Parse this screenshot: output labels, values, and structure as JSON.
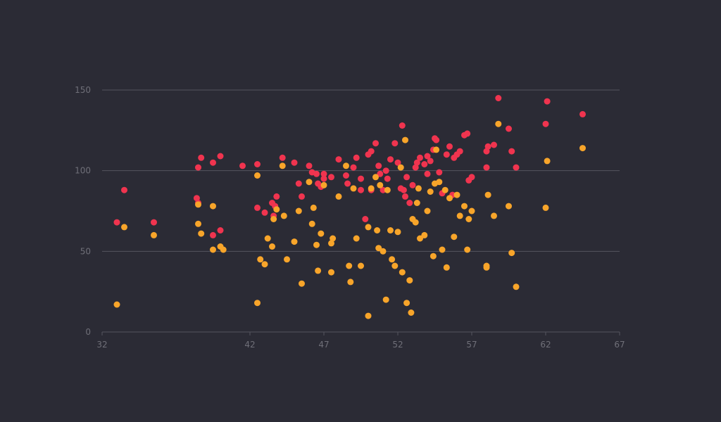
{
  "chart_data": {
    "type": "scatter",
    "xlim": [
      32,
      67
    ],
    "ylim": [
      0,
      160
    ],
    "grid": true,
    "legend": "none",
    "x_ticks": [
      32,
      42,
      47,
      52,
      57,
      62,
      67
    ],
    "y_ticks": [
      0,
      50,
      100,
      150
    ],
    "series": [
      {
        "color": "#f0344f",
        "points": [
          [
            33.0,
            68
          ],
          [
            33.5,
            88
          ],
          [
            35.5,
            68
          ],
          [
            38.5,
            102
          ],
          [
            38.7,
            108
          ],
          [
            39.5,
            105
          ],
          [
            40.0,
            109
          ],
          [
            41.5,
            103
          ],
          [
            42.5,
            104
          ],
          [
            43.0,
            74
          ],
          [
            43.5,
            80
          ],
          [
            43.6,
            72
          ],
          [
            43.8,
            84
          ],
          [
            44.2,
            108
          ],
          [
            45.0,
            105
          ],
          [
            45.3,
            92
          ],
          [
            45.5,
            84
          ],
          [
            46.0,
            103
          ],
          [
            46.2,
            99
          ],
          [
            46.5,
            98
          ],
          [
            46.6,
            92
          ],
          [
            46.8,
            90
          ],
          [
            47.0,
            95
          ],
          [
            47.5,
            96
          ],
          [
            48.0,
            107
          ],
          [
            48.5,
            97
          ],
          [
            48.6,
            92
          ],
          [
            49.0,
            102
          ],
          [
            49.2,
            108
          ],
          [
            49.5,
            88
          ],
          [
            49.8,
            70
          ],
          [
            50.0,
            110
          ],
          [
            50.2,
            112
          ],
          [
            50.5,
            117
          ],
          [
            50.7,
            103
          ],
          [
            50.8,
            98
          ],
          [
            51.0,
            88
          ],
          [
            51.2,
            100
          ],
          [
            51.3,
            95
          ],
          [
            51.5,
            107
          ],
          [
            51.8,
            117
          ],
          [
            52.0,
            105
          ],
          [
            52.2,
            89
          ],
          [
            52.3,
            128
          ],
          [
            52.5,
            84
          ],
          [
            52.6,
            96
          ],
          [
            52.8,
            80
          ],
          [
            53.0,
            91
          ],
          [
            53.2,
            102
          ],
          [
            53.3,
            105
          ],
          [
            53.5,
            108
          ],
          [
            53.8,
            104
          ],
          [
            54.0,
            109
          ],
          [
            54.2,
            106
          ],
          [
            54.4,
            113
          ],
          [
            54.5,
            120
          ],
          [
            54.6,
            119
          ],
          [
            54.8,
            99
          ],
          [
            55.0,
            86
          ],
          [
            55.3,
            110
          ],
          [
            55.5,
            115
          ],
          [
            55.8,
            108
          ],
          [
            56.0,
            110
          ],
          [
            56.2,
            112
          ],
          [
            56.5,
            122
          ],
          [
            56.7,
            123
          ],
          [
            56.8,
            94
          ],
          [
            57.0,
            96
          ],
          [
            58.0,
            102
          ],
          [
            58.0,
            112
          ],
          [
            58.1,
            115
          ],
          [
            58.5,
            116
          ],
          [
            58.8,
            145
          ],
          [
            59.5,
            126
          ],
          [
            59.7,
            112
          ],
          [
            60.0,
            102
          ],
          [
            62.0,
            129
          ],
          [
            62.1,
            143
          ],
          [
            64.5,
            135
          ],
          [
            38.5,
            80
          ],
          [
            38.4,
            83
          ],
          [
            39.5,
            60
          ],
          [
            40.0,
            63
          ],
          [
            42.5,
            77
          ],
          [
            43.7,
            78
          ],
          [
            47.0,
            98
          ],
          [
            49.5,
            95
          ],
          [
            50.2,
            88
          ],
          [
            52.4,
            88
          ],
          [
            54.0,
            98
          ],
          [
            55.7,
            85
          ]
        ]
      },
      {
        "color": "#f8a52a",
        "points": [
          [
            33.0,
            17
          ],
          [
            33.5,
            65
          ],
          [
            35.5,
            60
          ],
          [
            38.5,
            79
          ],
          [
            38.5,
            67
          ],
          [
            38.7,
            61
          ],
          [
            39.5,
            51
          ],
          [
            39.5,
            78
          ],
          [
            40.0,
            53
          ],
          [
            40.2,
            51
          ],
          [
            42.5,
            97
          ],
          [
            42.5,
            18
          ],
          [
            42.7,
            45
          ],
          [
            43.0,
            42
          ],
          [
            43.2,
            58
          ],
          [
            43.5,
            53
          ],
          [
            43.6,
            70
          ],
          [
            43.8,
            76
          ],
          [
            44.2,
            103
          ],
          [
            44.5,
            45
          ],
          [
            45.0,
            56
          ],
          [
            45.3,
            75
          ],
          [
            45.5,
            30
          ],
          [
            46.0,
            93
          ],
          [
            46.2,
            67
          ],
          [
            46.3,
            77
          ],
          [
            46.5,
            54
          ],
          [
            46.6,
            38
          ],
          [
            46.8,
            61
          ],
          [
            47.0,
            91
          ],
          [
            47.5,
            37
          ],
          [
            47.5,
            55
          ],
          [
            47.6,
            58
          ],
          [
            48.0,
            84
          ],
          [
            48.5,
            103
          ],
          [
            48.7,
            41
          ],
          [
            48.8,
            31
          ],
          [
            49.0,
            89
          ],
          [
            49.2,
            58
          ],
          [
            49.5,
            41
          ],
          [
            50.0,
            65
          ],
          [
            50.0,
            10
          ],
          [
            50.2,
            89
          ],
          [
            50.5,
            96
          ],
          [
            50.7,
            52
          ],
          [
            50.8,
            91
          ],
          [
            51.0,
            50
          ],
          [
            51.2,
            20
          ],
          [
            51.3,
            88
          ],
          [
            51.5,
            63
          ],
          [
            51.6,
            45
          ],
          [
            51.8,
            41
          ],
          [
            52.0,
            62
          ],
          [
            52.2,
            102
          ],
          [
            52.3,
            37
          ],
          [
            52.5,
            119
          ],
          [
            52.6,
            18
          ],
          [
            52.8,
            32
          ],
          [
            52.9,
            12
          ],
          [
            53.0,
            70
          ],
          [
            53.2,
            68
          ],
          [
            53.3,
            80
          ],
          [
            53.5,
            58
          ],
          [
            53.8,
            60
          ],
          [
            54.0,
            75
          ],
          [
            54.2,
            87
          ],
          [
            54.4,
            47
          ],
          [
            54.5,
            92
          ],
          [
            54.6,
            113
          ],
          [
            54.8,
            93
          ],
          [
            55.0,
            51
          ],
          [
            55.2,
            88
          ],
          [
            55.3,
            40
          ],
          [
            55.5,
            83
          ],
          [
            55.8,
            59
          ],
          [
            56.0,
            85
          ],
          [
            56.2,
            72
          ],
          [
            56.5,
            78
          ],
          [
            56.7,
            51
          ],
          [
            56.8,
            70
          ],
          [
            57.0,
            75
          ],
          [
            58.0,
            41
          ],
          [
            58.0,
            40
          ],
          [
            58.1,
            85
          ],
          [
            58.5,
            72
          ],
          [
            58.8,
            129
          ],
          [
            59.5,
            78
          ],
          [
            59.7,
            49
          ],
          [
            60.0,
            28
          ],
          [
            62.0,
            77
          ],
          [
            62.1,
            106
          ],
          [
            64.5,
            114
          ],
          [
            50.6,
            63
          ],
          [
            53.4,
            89
          ],
          [
            44.3,
            72
          ]
        ]
      }
    ]
  }
}
